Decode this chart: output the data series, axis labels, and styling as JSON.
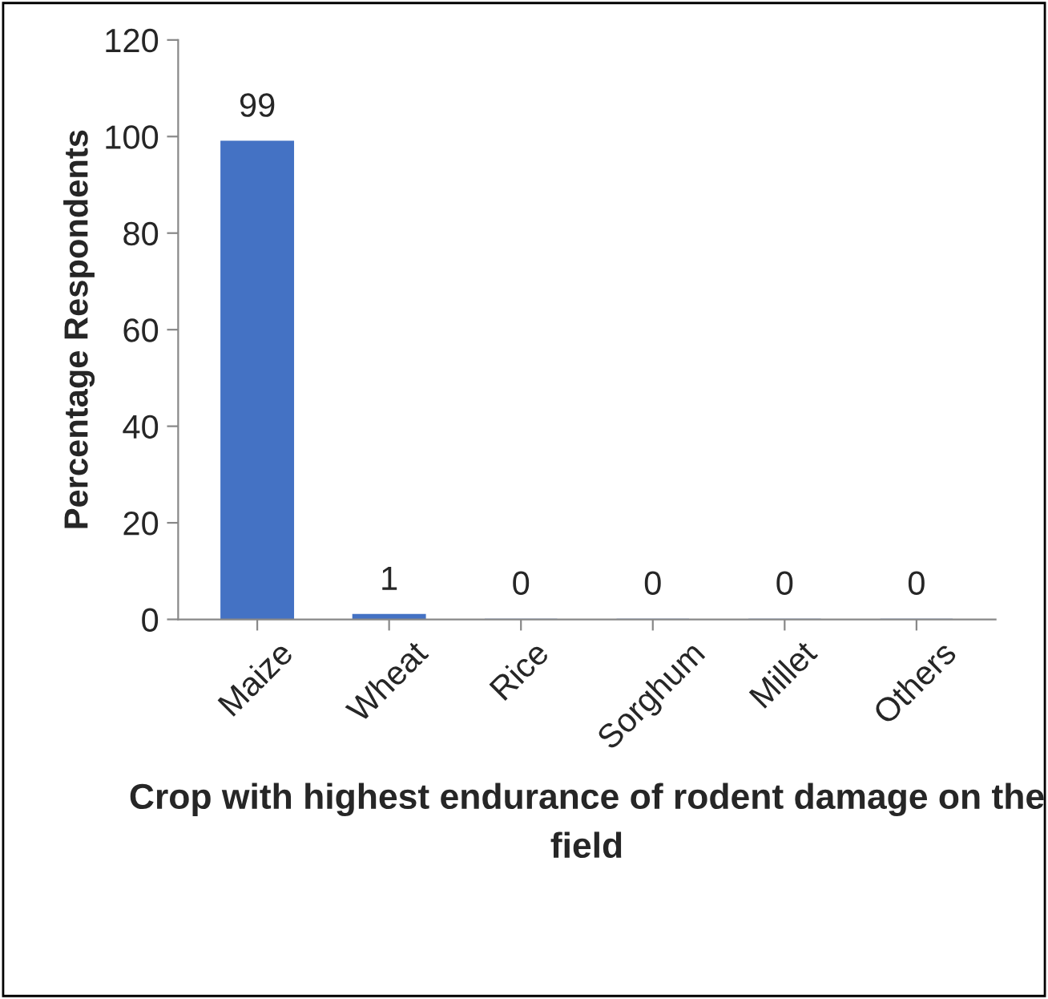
{
  "chart_data": {
    "type": "bar",
    "categories": [
      "Maize",
      "Wheat",
      "Rice",
      "Sorghum",
      "Millet",
      "Others"
    ],
    "values": [
      99,
      1,
      0,
      0,
      0,
      0
    ],
    "color": "#4472c4",
    "xlabel": "Crop with highest endurance of rodent damage on the field",
    "ylabel": "Percentage Respondents",
    "ylim": [
      0,
      120
    ],
    "yticks": [
      0,
      20,
      40,
      60,
      80,
      100,
      120
    ],
    "data_labels": true,
    "grid": false,
    "legend": false
  }
}
